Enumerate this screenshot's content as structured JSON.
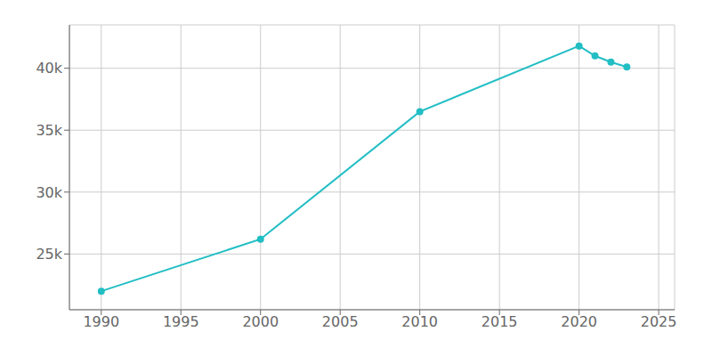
{
  "chart_data": {
    "type": "line",
    "x": [
      1990,
      2000,
      2010,
      2020,
      2021,
      2022,
      2023
    ],
    "values": [
      22000,
      26200,
      36500,
      41800,
      41000,
      40500,
      40100
    ],
    "color": "#22bec4",
    "marker": "circle",
    "xlim": [
      1988,
      2026
    ],
    "ylim": [
      20500,
      43500
    ],
    "xticks": [
      1990,
      1995,
      2000,
      2005,
      2010,
      2015,
      2020,
      2025
    ],
    "yticks": [
      {
        "value": 25000,
        "label": "25k"
      },
      {
        "value": 30000,
        "label": "30k"
      },
      {
        "value": 35000,
        "label": "35k"
      },
      {
        "value": 40000,
        "label": "40k"
      }
    ],
    "grid": true
  }
}
